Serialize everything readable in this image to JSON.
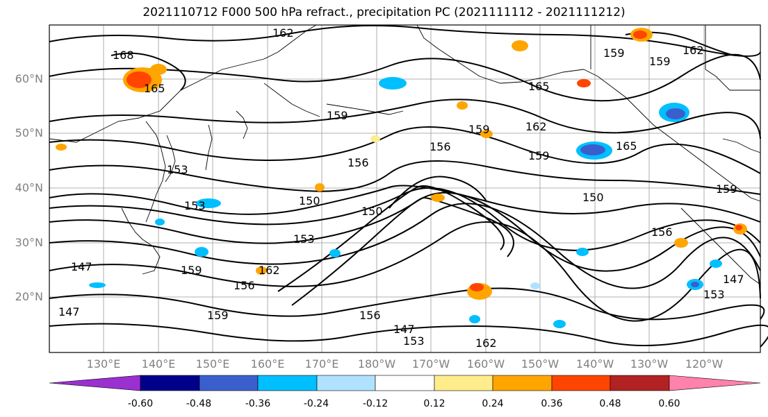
{
  "title": "2021110712 F000 500 hPa refract., precipitation PC (2021111112 - 2021111212)",
  "lat_labels": [
    "60°N",
    "50°N",
    "40°N",
    "30°N",
    "20°N"
  ],
  "lon_labels": [
    "130°E",
    "140°E",
    "150°E",
    "160°E",
    "170°E",
    "180°W",
    "170°W",
    "160°W",
    "150°W",
    "140°W",
    "130°W",
    "120°W"
  ],
  "contour_labels": [
    "162",
    "168",
    "165",
    "159",
    "162",
    "159",
    "165",
    "159",
    "162",
    "156",
    "159",
    "165",
    "159",
    "156",
    "153",
    "150",
    "159",
    "150",
    "153",
    "156",
    "153",
    "150",
    "147",
    "159",
    "162",
    "156",
    "147",
    "153",
    "147",
    "159",
    "156",
    "147",
    "153",
    "162"
  ],
  "colorbar": {
    "labels": [
      "-0.60",
      "-0.48",
      "-0.36",
      "-0.24",
      "-0.12",
      "0.12",
      "0.24",
      "0.36",
      "0.48",
      "0.60"
    ],
    "colors": [
      "#9b30d0",
      "#00008b",
      "#3a5fcd",
      "#00bfff",
      "#b0e2ff",
      "#ffffff",
      "#ffec8b",
      "#ffa500",
      "#ff4500",
      "#b22222",
      "#ff82ab"
    ]
  },
  "colors": {
    "pos_light": "#ffec8b",
    "pos_mid": "#ffa500",
    "pos_strong": "#ff4500",
    "neg_light": "#b0e2ff",
    "neg_mid": "#00bfff",
    "neg_strong": "#3a5fcd"
  }
}
